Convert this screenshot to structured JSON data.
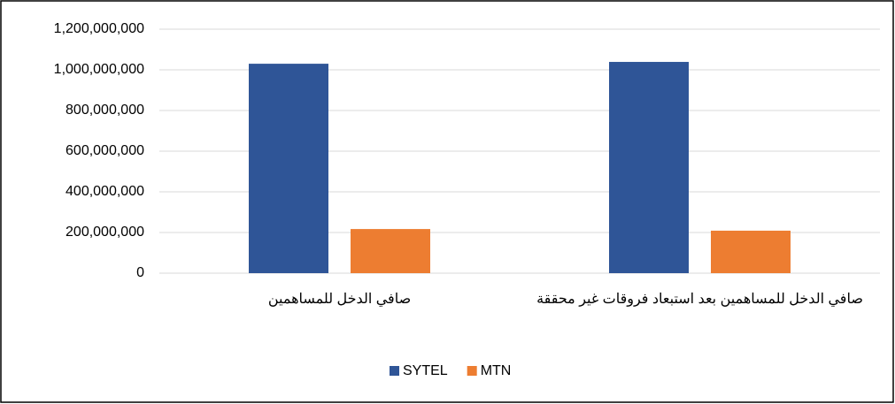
{
  "chart_data": {
    "type": "bar",
    "categories": [
      "صافي الدخل للمساهمين",
      "صافي الدخل للمساهمين بعد استبعاد فروقات غير محققة"
    ],
    "series": [
      {
        "name": "SYTEL",
        "color": "#2f5597",
        "values": [
          1030000000,
          1039000000
        ]
      },
      {
        "name": "MTN",
        "color": "#ed7d31",
        "values": [
          217000000,
          209000000
        ]
      }
    ],
    "ylim": [
      0,
      1200000000
    ],
    "yticks": [
      0,
      {
        "value": 200000000,
        "label": "200,000,000"
      },
      {
        "value": 400000000,
        "label": "400,000,000"
      },
      {
        "value": 600000000,
        "label": "600,000,000"
      },
      {
        "value": 800000000,
        "label": "800,000,000"
      },
      {
        "value": 1000000000,
        "label": "1,000,000,000"
      },
      {
        "value": 1200000000,
        "label": "1,200,000,000"
      }
    ],
    "grid": true,
    "legend": "bottom"
  }
}
